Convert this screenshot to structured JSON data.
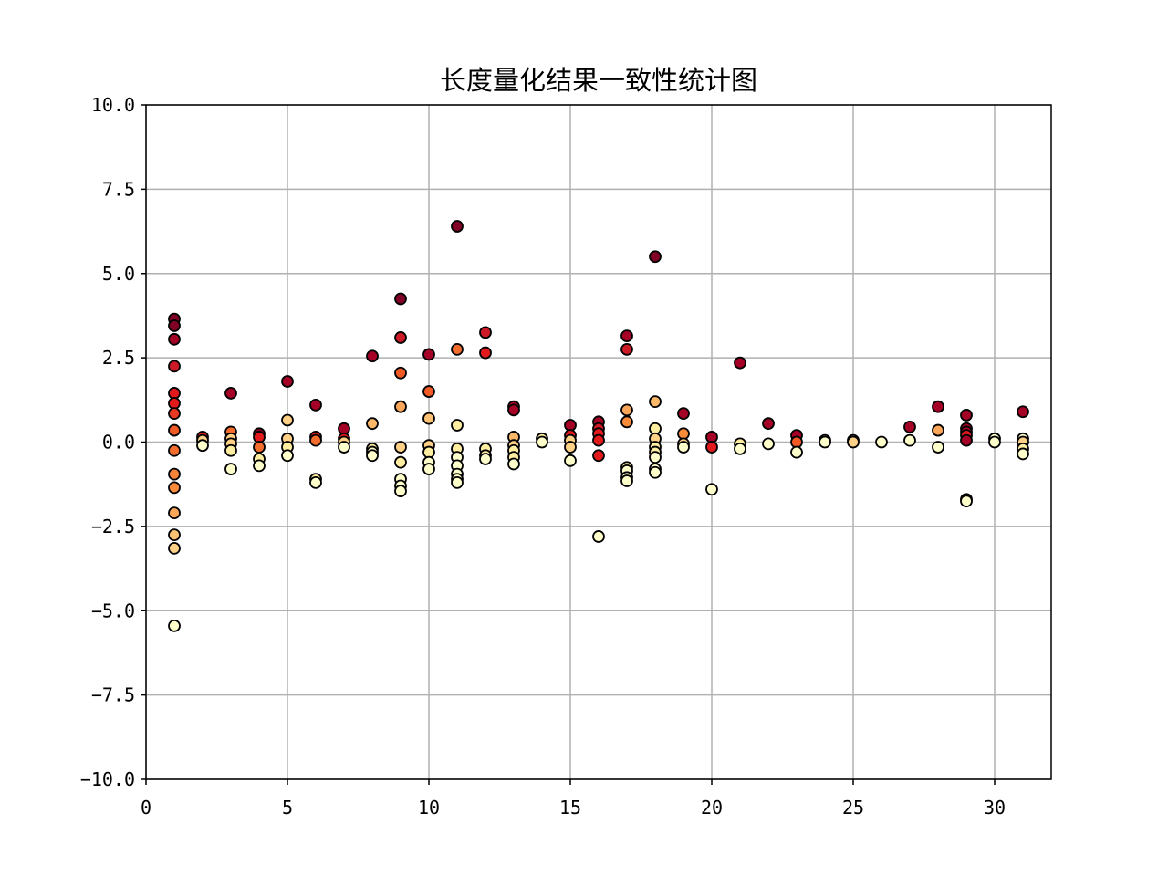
{
  "chart_data": {
    "type": "scatter",
    "title": "长度量化结果一致性统计图",
    "xlabel": "",
    "ylabel": "",
    "xlim": [
      0,
      32
    ],
    "ylim": [
      -10,
      10
    ],
    "grid": true,
    "legend": "none",
    "colormap": "YlOrRd",
    "marker_edge_color": "#000000",
    "xticks": [
      0,
      5,
      10,
      15,
      20,
      25,
      30
    ],
    "xtick_labels": [
      "0",
      "5",
      "10",
      "15",
      "20",
      "25",
      "30"
    ],
    "yticks": [
      10,
      7.5,
      5,
      2.5,
      0,
      -2.5,
      -5,
      -7.5,
      -10
    ],
    "ytick_labels": [
      "10.0",
      "7.5",
      "5.0",
      "2.5",
      "0.0",
      "−2.5",
      "−5.0",
      "−7.5",
      "−10.0"
    ],
    "points": [
      {
        "x": 1,
        "y": 3.65,
        "c": "#800026"
      },
      {
        "x": 1,
        "y": 3.45,
        "c": "#800026"
      },
      {
        "x": 1,
        "y": 3.05,
        "c": "#a50026"
      },
      {
        "x": 1,
        "y": 2.25,
        "c": "#cc1a26"
      },
      {
        "x": 1,
        "y": 1.45,
        "c": "#e31a1c"
      },
      {
        "x": 1,
        "y": 1.15,
        "c": "#e31a1c"
      },
      {
        "x": 1,
        "y": 0.85,
        "c": "#e83a22"
      },
      {
        "x": 1,
        "y": 0.35,
        "c": "#f15a24"
      },
      {
        "x": 1,
        "y": -0.25,
        "c": "#f46d2d"
      },
      {
        "x": 1,
        "y": -0.95,
        "c": "#f7823a"
      },
      {
        "x": 1,
        "y": -1.35,
        "c": "#f98b3b"
      },
      {
        "x": 1,
        "y": -2.1,
        "c": "#fca65a"
      },
      {
        "x": 1,
        "y": -2.75,
        "c": "#fdc174"
      },
      {
        "x": 1,
        "y": -3.15,
        "c": "#fed186"
      },
      {
        "x": 1,
        "y": -5.45,
        "c": "#ffffcc"
      },
      {
        "x": 2,
        "y": 0.15,
        "c": "#e31a1c"
      },
      {
        "x": 2,
        "y": 0.05,
        "c": "#fed186"
      },
      {
        "x": 2,
        "y": -0.1,
        "c": "#ffffcc"
      },
      {
        "x": 3,
        "y": 1.45,
        "c": "#a50026"
      },
      {
        "x": 3,
        "y": 0.3,
        "c": "#f46d2d"
      },
      {
        "x": 3,
        "y": 0.1,
        "c": "#fed186"
      },
      {
        "x": 3,
        "y": -0.05,
        "c": "#fed186"
      },
      {
        "x": 3,
        "y": -0.25,
        "c": "#ffeda0"
      },
      {
        "x": 3,
        "y": -0.8,
        "c": "#ffffcc"
      },
      {
        "x": 4,
        "y": 0.25,
        "c": "#800026"
      },
      {
        "x": 4,
        "y": 0.15,
        "c": "#e31a1c"
      },
      {
        "x": 4,
        "y": -0.15,
        "c": "#f46d2d"
      },
      {
        "x": 4,
        "y": -0.5,
        "c": "#ffeda0"
      },
      {
        "x": 4,
        "y": -0.7,
        "c": "#ffffcc"
      },
      {
        "x": 5,
        "y": 1.8,
        "c": "#a50026"
      },
      {
        "x": 5,
        "y": 0.65,
        "c": "#fed186"
      },
      {
        "x": 5,
        "y": 0.1,
        "c": "#fed186"
      },
      {
        "x": 5,
        "y": -0.15,
        "c": "#ffeda0"
      },
      {
        "x": 5,
        "y": -0.4,
        "c": "#ffffcc"
      },
      {
        "x": 6,
        "y": 1.1,
        "c": "#a50026"
      },
      {
        "x": 6,
        "y": 0.15,
        "c": "#e31a1c"
      },
      {
        "x": 6,
        "y": 0.05,
        "c": "#f46d2d"
      },
      {
        "x": 6,
        "y": -1.1,
        "c": "#ffeda0"
      },
      {
        "x": 6,
        "y": -1.2,
        "c": "#ffffcc"
      },
      {
        "x": 7,
        "y": 0.4,
        "c": "#a50026"
      },
      {
        "x": 7,
        "y": 0.1,
        "c": "#e31a1c"
      },
      {
        "x": 7,
        "y": 0.0,
        "c": "#fed186"
      },
      {
        "x": 7,
        "y": -0.15,
        "c": "#ffffcc"
      },
      {
        "x": 8,
        "y": 2.55,
        "c": "#a50026"
      },
      {
        "x": 8,
        "y": 0.55,
        "c": "#fdb768"
      },
      {
        "x": 8,
        "y": -0.2,
        "c": "#ffeda0"
      },
      {
        "x": 8,
        "y": -0.3,
        "c": "#ffffcc"
      },
      {
        "x": 8,
        "y": -0.4,
        "c": "#ffffcc"
      },
      {
        "x": 9,
        "y": 4.25,
        "c": "#800026"
      },
      {
        "x": 9,
        "y": 3.1,
        "c": "#cc1a26"
      },
      {
        "x": 9,
        "y": 2.05,
        "c": "#f15a24"
      },
      {
        "x": 9,
        "y": 1.05,
        "c": "#fca65a"
      },
      {
        "x": 9,
        "y": -0.15,
        "c": "#fed186"
      },
      {
        "x": 9,
        "y": -0.6,
        "c": "#ffeda0"
      },
      {
        "x": 9,
        "y": -1.1,
        "c": "#ffffcc"
      },
      {
        "x": 9,
        "y": -1.3,
        "c": "#ffffcc"
      },
      {
        "x": 9,
        "y": -1.45,
        "c": "#ffffcc"
      },
      {
        "x": 10,
        "y": 2.6,
        "c": "#a50026"
      },
      {
        "x": 10,
        "y": 1.5,
        "c": "#f15a24"
      },
      {
        "x": 10,
        "y": 0.7,
        "c": "#fdc174"
      },
      {
        "x": 10,
        "y": -0.1,
        "c": "#fed186"
      },
      {
        "x": 10,
        "y": -0.3,
        "c": "#ffeda0"
      },
      {
        "x": 10,
        "y": -0.6,
        "c": "#ffffcc"
      },
      {
        "x": 10,
        "y": -0.8,
        "c": "#ffffcc"
      },
      {
        "x": 11,
        "y": 6.4,
        "c": "#800026"
      },
      {
        "x": 11,
        "y": 2.75,
        "c": "#f46d2d"
      },
      {
        "x": 11,
        "y": 0.5,
        "c": "#ffeda0"
      },
      {
        "x": 11,
        "y": -0.2,
        "c": "#ffeda0"
      },
      {
        "x": 11,
        "y": -0.45,
        "c": "#ffffcc"
      },
      {
        "x": 11,
        "y": -0.7,
        "c": "#ffffcc"
      },
      {
        "x": 11,
        "y": -0.95,
        "c": "#ffffcc"
      },
      {
        "x": 11,
        "y": -1.1,
        "c": "#ffffcc"
      },
      {
        "x": 11,
        "y": -1.2,
        "c": "#ffffcc"
      },
      {
        "x": 12,
        "y": 3.25,
        "c": "#cc1a26"
      },
      {
        "x": 12,
        "y": 2.65,
        "c": "#e31a1c"
      },
      {
        "x": 12,
        "y": -0.2,
        "c": "#ffeda0"
      },
      {
        "x": 12,
        "y": -0.4,
        "c": "#ffeda0"
      },
      {
        "x": 12,
        "y": -0.5,
        "c": "#ffffcc"
      },
      {
        "x": 13,
        "y": 1.05,
        "c": "#a50026"
      },
      {
        "x": 13,
        "y": 0.95,
        "c": "#a50026"
      },
      {
        "x": 13,
        "y": 0.15,
        "c": "#fdb768"
      },
      {
        "x": 13,
        "y": -0.1,
        "c": "#fed186"
      },
      {
        "x": 13,
        "y": -0.25,
        "c": "#ffeda0"
      },
      {
        "x": 13,
        "y": -0.45,
        "c": "#ffeda0"
      },
      {
        "x": 13,
        "y": -0.65,
        "c": "#ffffcc"
      },
      {
        "x": 14,
        "y": 0.1,
        "c": "#ffeda0"
      },
      {
        "x": 14,
        "y": 0.0,
        "c": "#ffffcc"
      },
      {
        "x": 15,
        "y": 0.5,
        "c": "#a50026"
      },
      {
        "x": 15,
        "y": 0.2,
        "c": "#e31a1c"
      },
      {
        "x": 15,
        "y": 0.05,
        "c": "#fed186"
      },
      {
        "x": 15,
        "y": -0.15,
        "c": "#fed186"
      },
      {
        "x": 15,
        "y": -0.55,
        "c": "#ffffcc"
      },
      {
        "x": 16,
        "y": 0.6,
        "c": "#a50026"
      },
      {
        "x": 16,
        "y": 0.4,
        "c": "#cc1a26"
      },
      {
        "x": 16,
        "y": 0.25,
        "c": "#e31a1c"
      },
      {
        "x": 16,
        "y": 0.05,
        "c": "#e31a1c"
      },
      {
        "x": 16,
        "y": -0.4,
        "c": "#e31a1c"
      },
      {
        "x": 16,
        "y": -2.8,
        "c": "#ffffcc"
      },
      {
        "x": 17,
        "y": 3.15,
        "c": "#a50026"
      },
      {
        "x": 17,
        "y": 2.75,
        "c": "#cc1a26"
      },
      {
        "x": 17,
        "y": 0.95,
        "c": "#fca65a"
      },
      {
        "x": 17,
        "y": 0.6,
        "c": "#f98b3b"
      },
      {
        "x": 17,
        "y": -0.75,
        "c": "#ffeda0"
      },
      {
        "x": 17,
        "y": -0.85,
        "c": "#ffffcc"
      },
      {
        "x": 17,
        "y": -1.05,
        "c": "#ffffcc"
      },
      {
        "x": 17,
        "y": -1.15,
        "c": "#ffffcc"
      },
      {
        "x": 18,
        "y": 5.5,
        "c": "#800026"
      },
      {
        "x": 18,
        "y": 1.2,
        "c": "#fdb768"
      },
      {
        "x": 18,
        "y": 0.4,
        "c": "#ffeda0"
      },
      {
        "x": 18,
        "y": 0.1,
        "c": "#fed186"
      },
      {
        "x": 18,
        "y": -0.15,
        "c": "#ffeda0"
      },
      {
        "x": 18,
        "y": -0.3,
        "c": "#ffeda0"
      },
      {
        "x": 18,
        "y": -0.45,
        "c": "#ffffcc"
      },
      {
        "x": 18,
        "y": -0.8,
        "c": "#ffffcc"
      },
      {
        "x": 18,
        "y": -0.9,
        "c": "#ffffcc"
      },
      {
        "x": 19,
        "y": 0.85,
        "c": "#a50026"
      },
      {
        "x": 19,
        "y": 0.25,
        "c": "#f98b3b"
      },
      {
        "x": 19,
        "y": -0.05,
        "c": "#fed186"
      },
      {
        "x": 19,
        "y": -0.15,
        "c": "#ffffcc"
      },
      {
        "x": 20,
        "y": 0.15,
        "c": "#a50026"
      },
      {
        "x": 20,
        "y": -0.15,
        "c": "#e31a1c"
      },
      {
        "x": 20,
        "y": -1.4,
        "c": "#ffffcc"
      },
      {
        "x": 21,
        "y": 2.35,
        "c": "#a50026"
      },
      {
        "x": 21,
        "y": -0.05,
        "c": "#ffeda0"
      },
      {
        "x": 21,
        "y": -0.2,
        "c": "#ffffcc"
      },
      {
        "x": 22,
        "y": 0.55,
        "c": "#a50026"
      },
      {
        "x": 22,
        "y": -0.05,
        "c": "#ffffcc"
      },
      {
        "x": 23,
        "y": 0.2,
        "c": "#a50026"
      },
      {
        "x": 23,
        "y": 0.0,
        "c": "#f15a24"
      },
      {
        "x": 23,
        "y": -0.3,
        "c": "#ffffcc"
      },
      {
        "x": 24,
        "y": 0.05,
        "c": "#ffffcc"
      },
      {
        "x": 24,
        "y": 0.0,
        "c": "#ffffcc"
      },
      {
        "x": 25,
        "y": 0.05,
        "c": "#ffffcc"
      },
      {
        "x": 25,
        "y": 0.0,
        "c": "#fed186"
      },
      {
        "x": 26,
        "y": 0.0,
        "c": "#ffffcc"
      },
      {
        "x": 27,
        "y": 0.45,
        "c": "#a50026"
      },
      {
        "x": 27,
        "y": 0.05,
        "c": "#ffffcc"
      },
      {
        "x": 28,
        "y": 1.05,
        "c": "#a50026"
      },
      {
        "x": 28,
        "y": 0.35,
        "c": "#fca65a"
      },
      {
        "x": 28,
        "y": -0.15,
        "c": "#ffffcc"
      },
      {
        "x": 29,
        "y": 0.8,
        "c": "#a50026"
      },
      {
        "x": 29,
        "y": 0.4,
        "c": "#a50026"
      },
      {
        "x": 29,
        "y": 0.3,
        "c": "#a50026"
      },
      {
        "x": 29,
        "y": 0.2,
        "c": "#e31a1c"
      },
      {
        "x": 29,
        "y": 0.05,
        "c": "#a50026"
      },
      {
        "x": 29,
        "y": -1.7,
        "c": "#ffeda0"
      },
      {
        "x": 29,
        "y": -1.75,
        "c": "#ffffcc"
      },
      {
        "x": 30,
        "y": 0.1,
        "c": "#ffffcc"
      },
      {
        "x": 30,
        "y": 0.0,
        "c": "#ffffcc"
      },
      {
        "x": 31,
        "y": 0.9,
        "c": "#a50026"
      },
      {
        "x": 31,
        "y": 0.1,
        "c": "#ffffcc"
      },
      {
        "x": 31,
        "y": 0.0,
        "c": "#fed186"
      },
      {
        "x": 31,
        "y": -0.2,
        "c": "#ffeda0"
      },
      {
        "x": 31,
        "y": -0.35,
        "c": "#ffffcc"
      }
    ]
  }
}
